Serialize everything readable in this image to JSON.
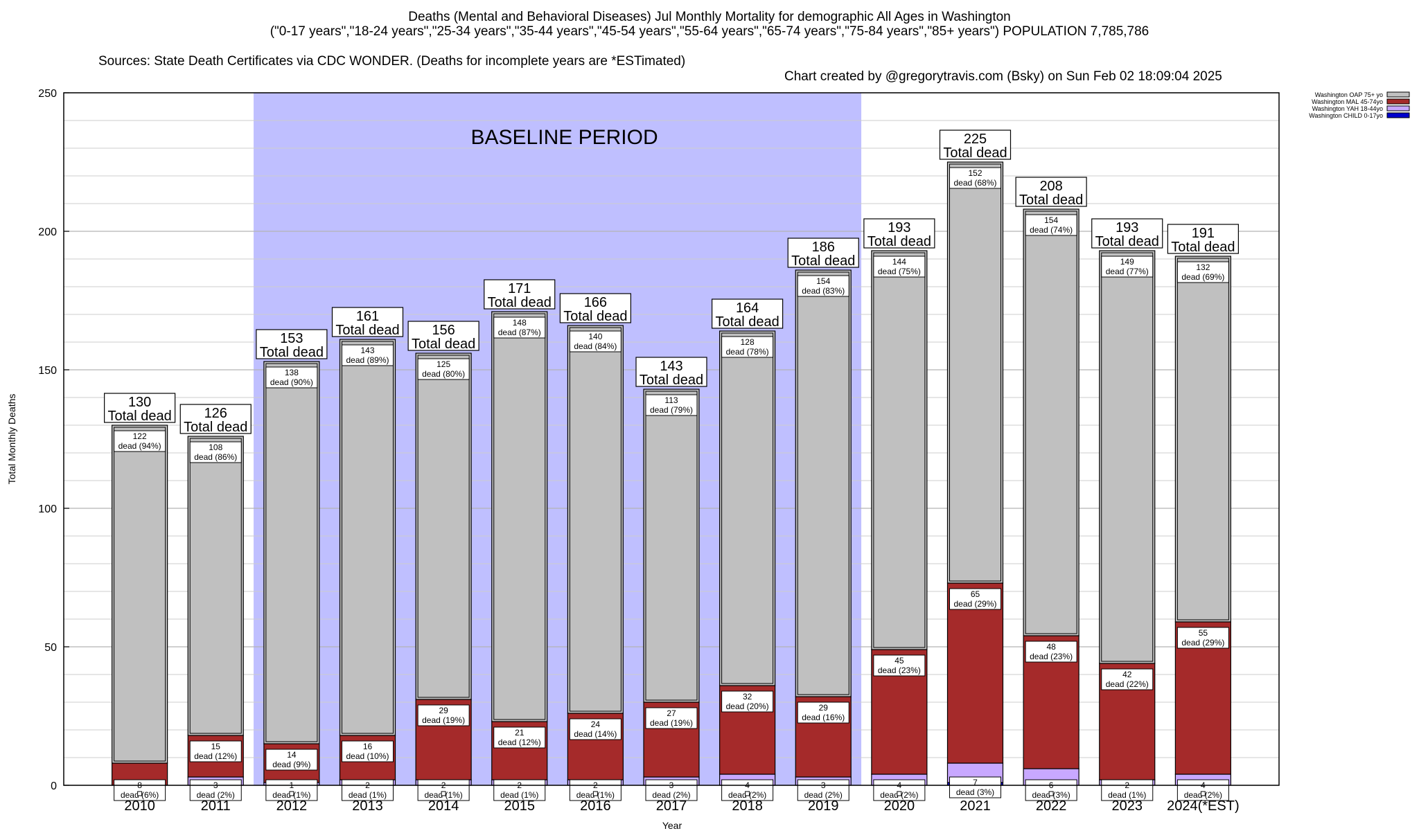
{
  "header": {
    "title": "Deaths (Mental and Behavioral Diseases) Jul Monthly Mortality for demographic All Ages in Washington",
    "subtitle": "(\"0-17 years\",\"18-24 years\",\"25-34 years\",\"35-44 years\",\"45-54 years\",\"55-64 years\",\"65-74 years\",\"75-84 years\",\"85+ years\") POPULATION 7,785,786",
    "sources": "Sources: State Death Certificates via CDC WONDER. (Deaths for incomplete years are *ESTimated)",
    "credit": "Chart created by @gregorytravis.com (Bsky) on Sun Feb 02 18:09:04 2025"
  },
  "chart_data": {
    "type": "bar",
    "stacked": true,
    "xlabel": "Year",
    "ylabel": "Total Monthly Deaths",
    "ylim": [
      0,
      250
    ],
    "yticks": [
      0,
      50,
      100,
      150,
      200,
      250
    ],
    "grid": true,
    "legend_position": "top-right",
    "baseline": {
      "label": "BASELINE PERIOD",
      "from": "2012",
      "to": "2019",
      "color": "#bfbfff"
    },
    "total_label_suffix": "Total dead",
    "segment_label_prefix": "dead",
    "categories": [
      "2010",
      "2011",
      "2012",
      "2013",
      "2014",
      "2015",
      "2016",
      "2017",
      "2018",
      "2019",
      "2020",
      "2021",
      "2022",
      "2023",
      "2024(*EST)"
    ],
    "totals": [
      130,
      126,
      153,
      161,
      156,
      171,
      166,
      143,
      164,
      186,
      193,
      225,
      208,
      193,
      191
    ],
    "series": [
      {
        "name": "Washington CHILD 0-17yo",
        "color": "#0000cc",
        "values": [
          0,
          0,
          0,
          0,
          0,
          0,
          0,
          0,
          0,
          0,
          0,
          1,
          0,
          0,
          0
        ],
        "percent": [
          0,
          0,
          0,
          0,
          0,
          0,
          0,
          0,
          0,
          0,
          0,
          0,
          0,
          0,
          0
        ],
        "labeled": false
      },
      {
        "name": "Washington YAH 18-44yo",
        "color": "#c8a8ff",
        "values": [
          0,
          3,
          1,
          2,
          2,
          2,
          2,
          3,
          4,
          3,
          4,
          7,
          6,
          2,
          4
        ],
        "percent": [
          0,
          2,
          1,
          1,
          1,
          1,
          1,
          2,
          2,
          2,
          2,
          3,
          3,
          1,
          2
        ],
        "labeled": [
          false,
          true,
          true,
          true,
          true,
          true,
          true,
          true,
          true,
          true,
          true,
          true,
          true,
          true,
          true
        ]
      },
      {
        "name": "Washington MAL 45-74yo",
        "color": "#a52a2a",
        "values": [
          8,
          15,
          14,
          16,
          29,
          21,
          24,
          27,
          32,
          29,
          45,
          65,
          48,
          42,
          55
        ],
        "percent": [
          6,
          12,
          9,
          10,
          19,
          12,
          14,
          19,
          20,
          16,
          23,
          29,
          23,
          22,
          29
        ],
        "labeled": true
      },
      {
        "name": "Washington OAP 75+ yo",
        "color": "#c0c0c0",
        "values": [
          122,
          108,
          138,
          143,
          125,
          148,
          140,
          113,
          128,
          154,
          144,
          152,
          154,
          149,
          132
        ],
        "percent": [
          94,
          86,
          90,
          89,
          80,
          87,
          84,
          79,
          78,
          83,
          75,
          68,
          74,
          77,
          69
        ],
        "labeled": true
      }
    ]
  }
}
